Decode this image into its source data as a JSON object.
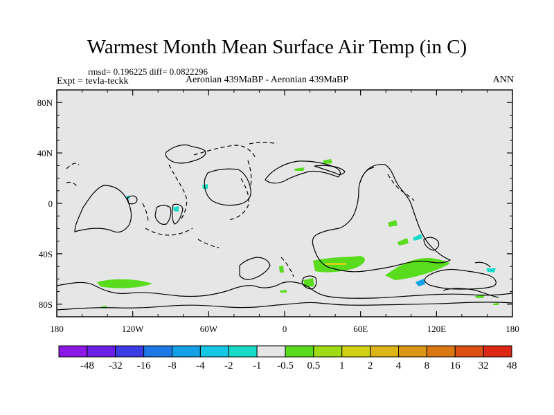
{
  "title": "Warmest Month Mean Surface Air Temp (in C)",
  "stats": "rmsd= 0.196225 diff= 0.0822296",
  "expt": "Expt = tevla-teckk",
  "subtitle": "Aeronian 439MaBP - Aeronian 439MaBP",
  "season": "ANN",
  "map": {
    "background_color": "#e6e6e6",
    "lat_ticks": [
      {
        "value": 80,
        "label": "80N"
      },
      {
        "value": 40,
        "label": "40N"
      },
      {
        "value": 0,
        "label": "0"
      },
      {
        "value": -40,
        "label": "40S"
      },
      {
        "value": -80,
        "label": "80S"
      }
    ],
    "lon_ticks": [
      {
        "value": -180,
        "label": "180"
      },
      {
        "value": -120,
        "label": "120W"
      },
      {
        "value": -60,
        "label": "60W"
      },
      {
        "value": 0,
        "label": "0"
      },
      {
        "value": 60,
        "label": "60E"
      },
      {
        "value": 120,
        "label": "120E"
      },
      {
        "value": 180,
        "label": "180"
      }
    ]
  },
  "colorbar": {
    "colors": [
      "#8c18e6",
      "#6a1ee6",
      "#3c3ce6",
      "#1e78e6",
      "#12a0e6",
      "#12c8e6",
      "#18dcc8",
      "#e6e6e6",
      "#5adc1e",
      "#a0dc14",
      "#d2d214",
      "#dcb414",
      "#dc9614",
      "#dc7814",
      "#dc5014",
      "#dc2814"
    ],
    "labels": [
      "-48",
      "-32",
      "-16",
      "-8",
      "-4",
      "-2",
      "-1",
      "-0.5",
      "0.5",
      "1",
      "2",
      "4",
      "8",
      "16",
      "32",
      "48"
    ]
  }
}
